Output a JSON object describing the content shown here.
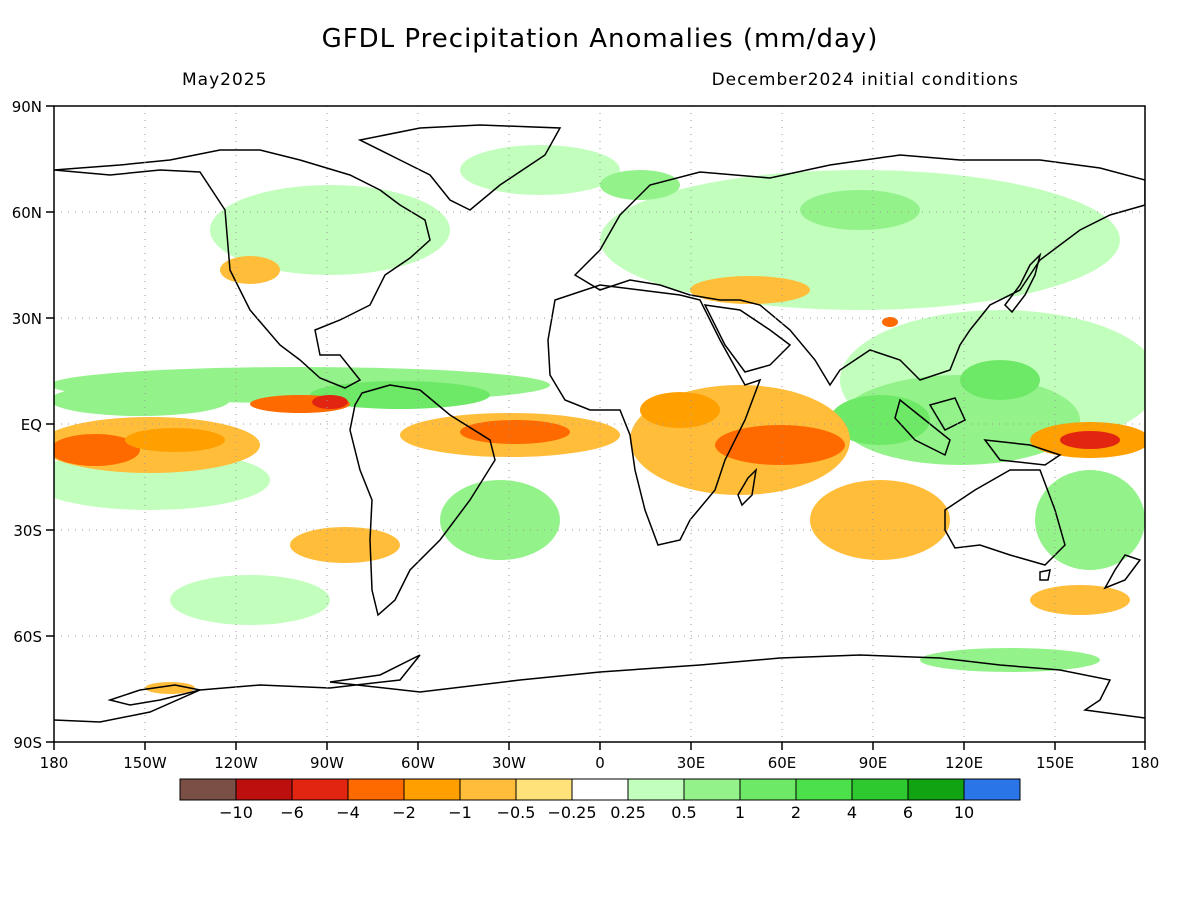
{
  "map": {
    "title": "GFDL Precipitation Anomalies (mm/day)",
    "valid_label": "May2025",
    "init_label": "December2024 initial conditions",
    "lat_labels": [
      "90N",
      "60N",
      "30N",
      "EQ",
      "30S",
      "60S",
      "90S"
    ],
    "lon_labels": [
      "180",
      "150W",
      "120W",
      "90W",
      "60W",
      "30W",
      "0",
      "30E",
      "60E",
      "90E",
      "120E",
      "150E",
      "180"
    ]
  },
  "legend": {
    "colors": [
      "#7a4f45",
      "#be0f0f",
      "#e22511",
      "#ff6a00",
      "#ffa000",
      "#ffbd3a",
      "#ffe27a",
      "#ffffff",
      "#c2ffbd",
      "#93f28a",
      "#6ee867",
      "#4ce04a",
      "#2ec92f",
      "#12a312",
      "#2a75e8"
    ],
    "labels": [
      "−10",
      "−6",
      "−4",
      "−2",
      "−1",
      "−0.5",
      "−0.25",
      "0.25",
      "0.5",
      "1",
      "2",
      "4",
      "6",
      "10"
    ]
  }
}
